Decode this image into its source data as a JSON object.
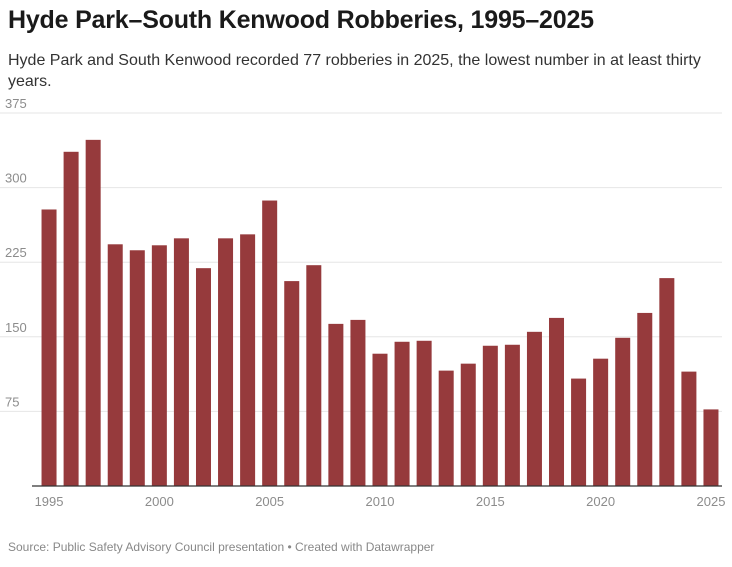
{
  "chart_data": {
    "type": "bar",
    "title": "Hyde Park–South Kenwood Robberies, 1995–2025",
    "subtitle": "Hyde Park and South Kenwood recorded 77 robberies in 2025, the lowest number in at least thirty years.",
    "source": "Source: Public Safety Advisory Council presentation • Created with Datawrapper",
    "xlabel": "",
    "ylabel": "",
    "ylim": [
      0,
      375
    ],
    "yticks": [
      75,
      150,
      225,
      300,
      375
    ],
    "xticks": [
      1995,
      2000,
      2005,
      2010,
      2015,
      2020,
      2025
    ],
    "categories": [
      1995,
      1996,
      1997,
      1998,
      1999,
      2000,
      2001,
      2002,
      2003,
      2004,
      2005,
      2006,
      2007,
      2008,
      2009,
      2010,
      2011,
      2012,
      2013,
      2014,
      2015,
      2016,
      2017,
      2018,
      2019,
      2020,
      2021,
      2022,
      2023,
      2024,
      2025
    ],
    "values": [
      278,
      336,
      348,
      243,
      237,
      242,
      249,
      219,
      249,
      253,
      287,
      206,
      222,
      163,
      167,
      133,
      145,
      146,
      116,
      123,
      141,
      142,
      155,
      169,
      108,
      128,
      149,
      174,
      209,
      115,
      77
    ],
    "colors": {
      "bar": "#963a3c",
      "grid": "#e6e6e6",
      "axis": "#333333"
    }
  }
}
